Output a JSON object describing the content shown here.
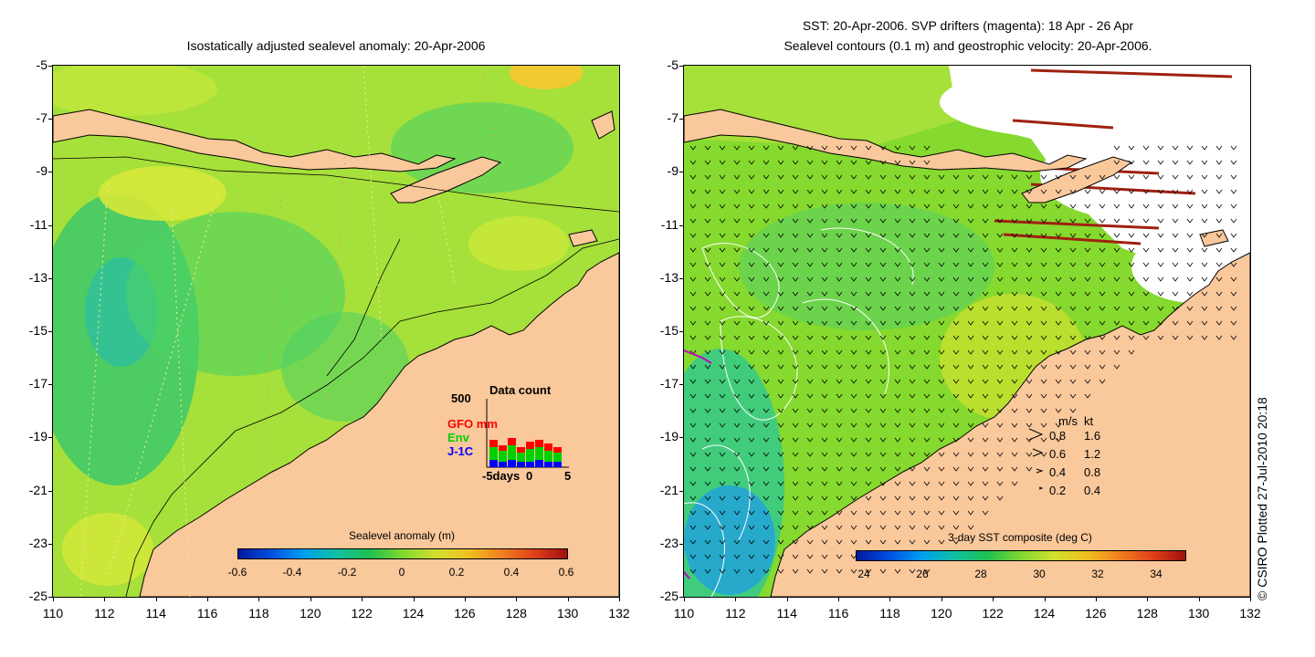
{
  "left_panel": {
    "title": "Isostatically adjusted sealevel anomaly: 20-Apr-2006",
    "colorbar": {
      "title": "Sealevel anomaly (m)",
      "ticks": [
        "-0.6",
        "-0.4",
        "-0.2",
        "0",
        "0.2",
        "0.4",
        "0.6"
      ]
    },
    "data_count_inset": {
      "title": "Data count",
      "y_max_label": "500",
      "series": [
        {
          "name": "GFO",
          "color": "#ff0000"
        },
        {
          "name": "Env",
          "color": "#00d000"
        },
        {
          "name": "J-1C",
          "color": "#0000ff"
        }
      ],
      "unit_label": "mm",
      "x_labels": [
        "-5days",
        "0",
        "5"
      ]
    }
  },
  "right_panel": {
    "title_line1": "SST: 20-Apr-2006. SVP drifters (magenta): 18 Apr - 26 Apr",
    "title_line2": "Sealevel contours (0.1 m) and geostrophic velocity: 20-Apr-2006.",
    "colorbar": {
      "title": "3-day SST composite (deg C)",
      "ticks": [
        "24",
        "26",
        "28",
        "30",
        "32",
        "34"
      ]
    },
    "velocity_legend": {
      "header_ms": "m/s",
      "header_kt": "kt",
      "rows": [
        {
          "ms": "0.8",
          "kt": "1.6"
        },
        {
          "ms": "0.6",
          "kt": "1.2"
        },
        {
          "ms": "0.4",
          "kt": "0.8"
        },
        {
          "ms": "0.2",
          "kt": "0.4"
        }
      ]
    }
  },
  "axes": {
    "y_ticks": [
      "-5",
      "-7",
      "-9",
      "-11",
      "-13",
      "-15",
      "-17",
      "-19",
      "-21",
      "-23",
      "-25"
    ],
    "x_ticks": [
      "110",
      "112",
      "114",
      "116",
      "118",
      "120",
      "122",
      "124",
      "126",
      "128",
      "130",
      "132"
    ]
  },
  "credit": "© CSIRO Plotted 27-Jul-2010 20:18",
  "colors": {
    "land": "#f9c89b",
    "ssh_background": "#a6e03a",
    "sst_background": "#86d92e"
  }
}
